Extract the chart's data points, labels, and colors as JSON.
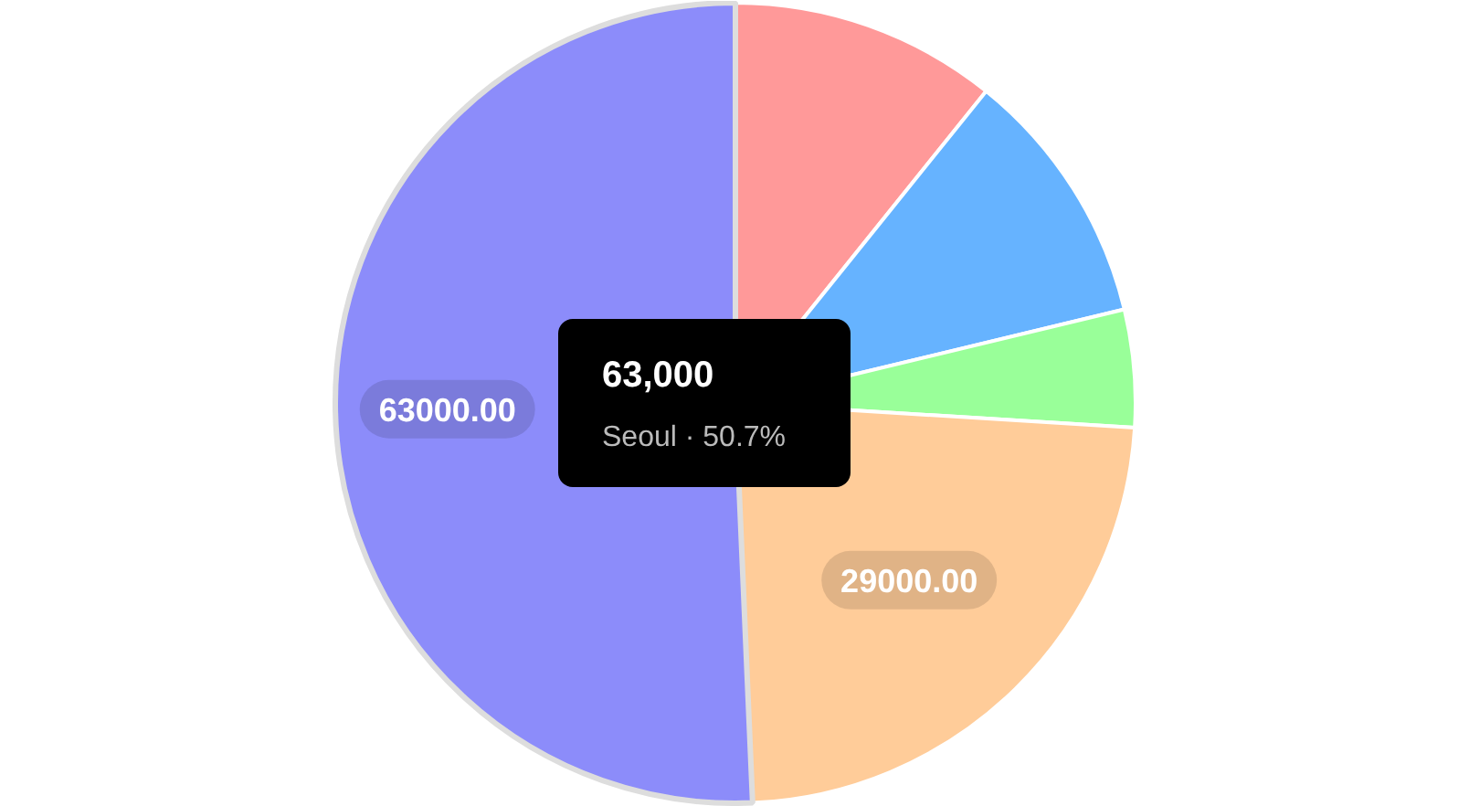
{
  "chart_data": {
    "type": "pie",
    "categories": [
      null,
      null,
      null,
      null,
      null
    ],
    "values": [
      13400,
      13000,
      5900,
      29000,
      63000
    ],
    "colors": [
      "#ff9999",
      "#66b3ff",
      "#99ff99",
      "#ffcc99",
      "#8c8cfa"
    ],
    "value_labels": [
      null,
      null,
      null,
      "29000.00",
      "63000.00"
    ],
    "annotations": [
      "63,000",
      "Seoul · 50.7%"
    ]
  }
}
